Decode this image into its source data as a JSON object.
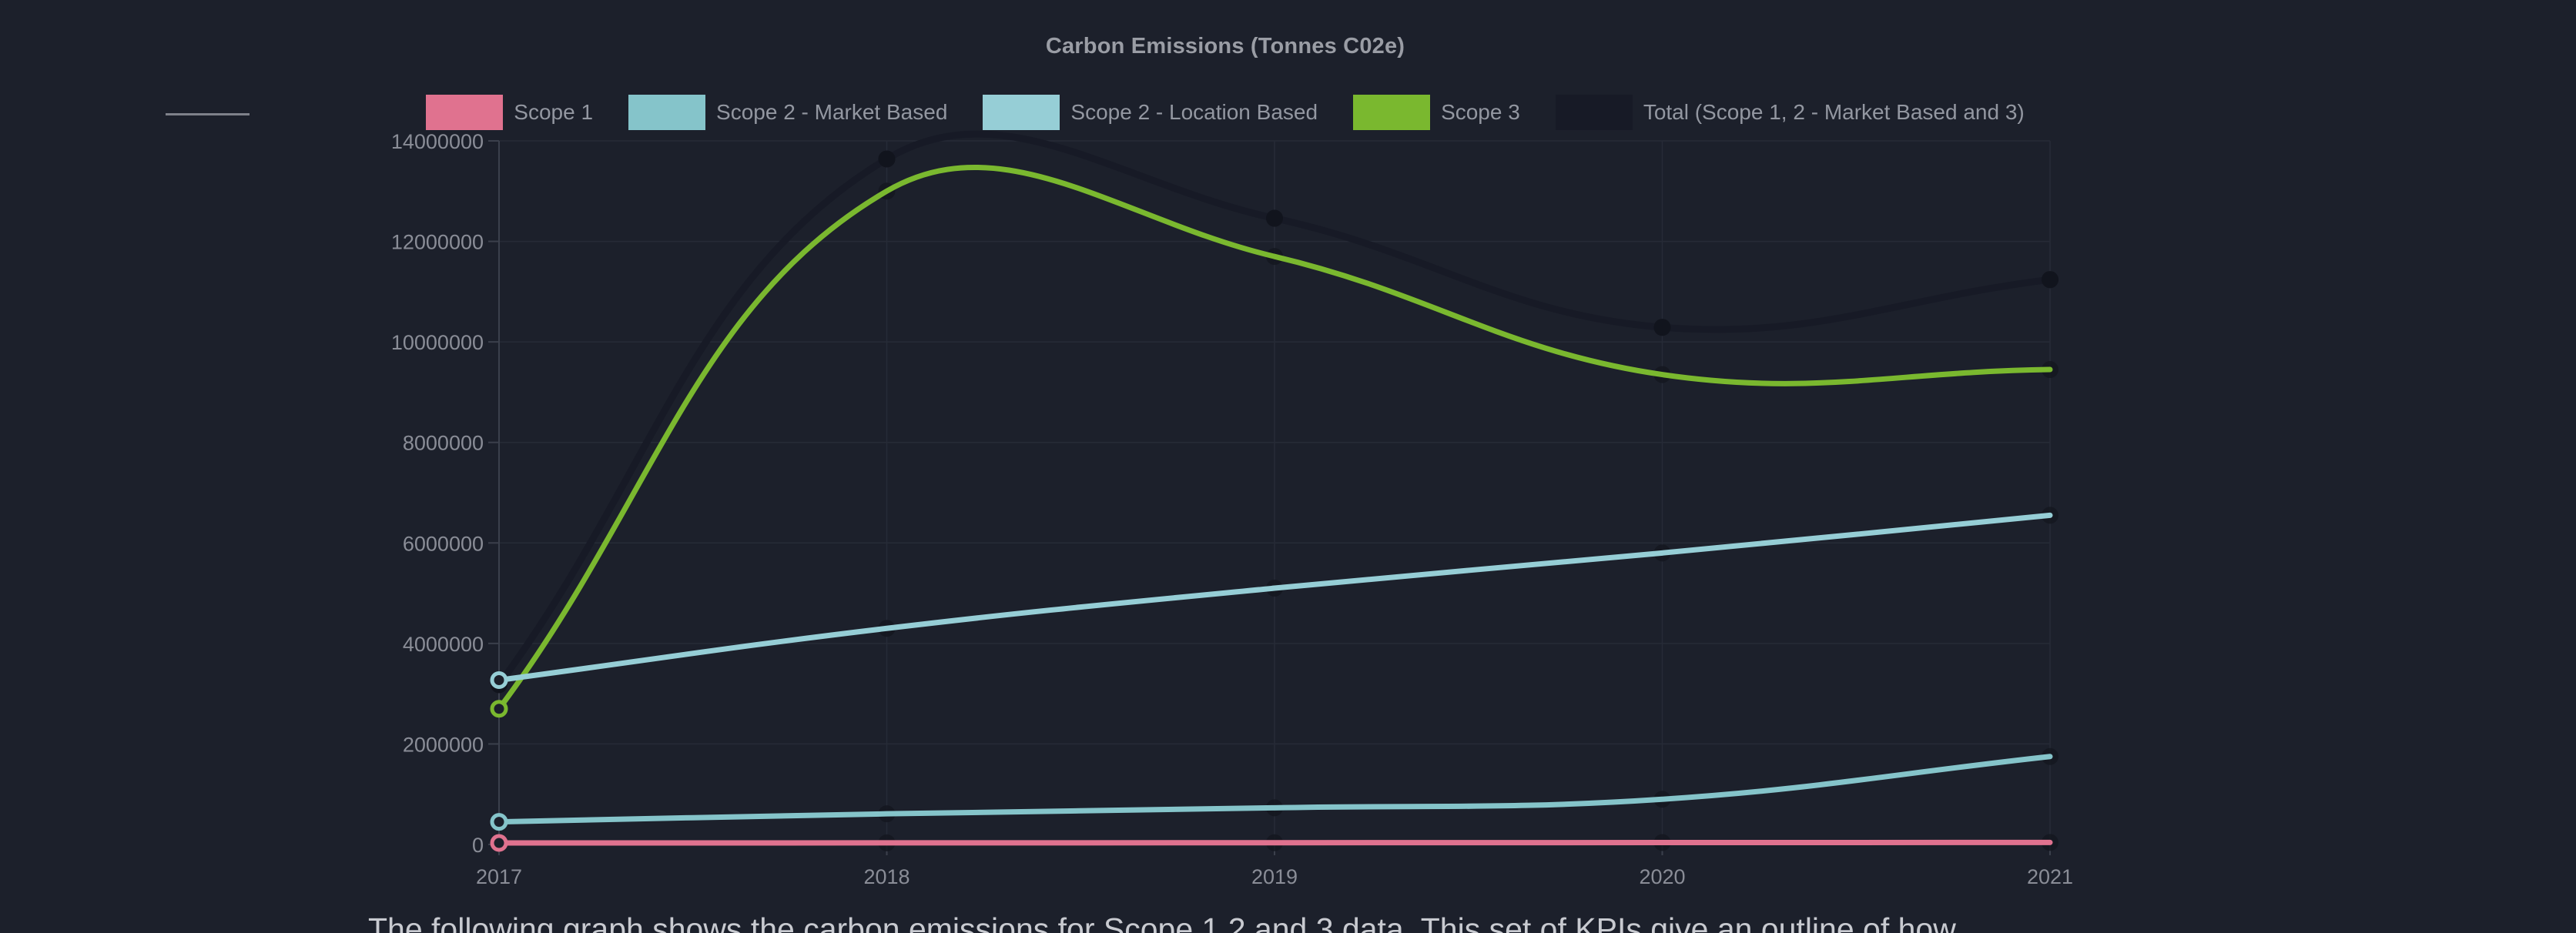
{
  "chart_data": {
    "type": "line",
    "title": "Carbon Emissions (Tonnes C02e)",
    "categories": [
      "2017",
      "2018",
      "2019",
      "2020",
      "2021"
    ],
    "y_ticks": [
      0,
      2000000,
      4000000,
      6000000,
      8000000,
      10000000,
      12000000,
      14000000
    ],
    "ylim": [
      0,
      14000000
    ],
    "grid": true,
    "legend_position": "top",
    "line_tension": 0.4,
    "series": [
      {
        "name": "Scope 1",
        "color": "#e0728f",
        "values": [
          30000,
          32000,
          35000,
          38000,
          40000
        ]
      },
      {
        "name": "Scope 2 - Market Based",
        "color": "#85c4ca",
        "values": [
          450000,
          610000,
          730000,
          900000,
          1750000
        ]
      },
      {
        "name": "Scope 2 - Location Based",
        "color": "#96ced6",
        "values": [
          3270000,
          4300000,
          5100000,
          5800000,
          6550000
        ]
      },
      {
        "name": "Scope 3",
        "color": "#7ab82f",
        "values": [
          2700000,
          13000000,
          11700000,
          9350000,
          9450000
        ]
      },
      {
        "name": "Total (Scope 1, 2 - Market Based and 3)",
        "color": "#171a26",
        "values": [
          3180000,
          13640000,
          12460000,
          10290000,
          11240000
        ]
      }
    ],
    "colors": {
      "background": "#1c202b",
      "grid": "#262b37",
      "axis": "#3b404c",
      "tick_text": "#8a8d97",
      "title_text": "#9a9da5",
      "legend_text": "#9397a1",
      "halo": "#141720"
    }
  },
  "footer": {
    "text": "The following graph shows the carbon emissions for Scope 1,2 and 3 data. This set of KPIs give an outline of how"
  }
}
